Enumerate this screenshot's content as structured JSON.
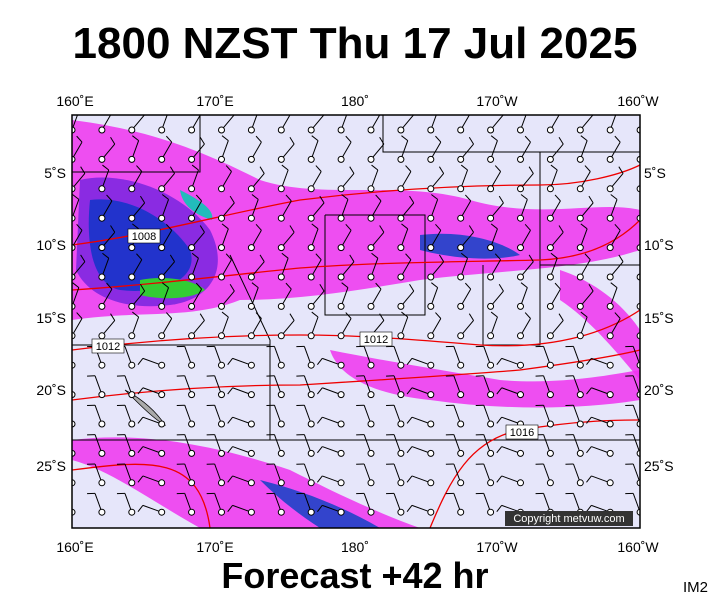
{
  "title": "1800 NZST Thu 17 Jul 2025",
  "map": {
    "lon_labels": [
      "160˚E",
      "170˚E",
      "180˚",
      "170˚W",
      "160˚W"
    ],
    "lat_labels": [
      "5˚S",
      "10˚S",
      "15˚S",
      "20˚S",
      "25˚S"
    ],
    "isobar_labels": [
      "1008",
      "1012",
      "1012",
      "1016"
    ],
    "copyright": "Copyright metvuw.com"
  },
  "footer": {
    "forecast": "Forecast +42 hr",
    "id": "IM2"
  }
}
